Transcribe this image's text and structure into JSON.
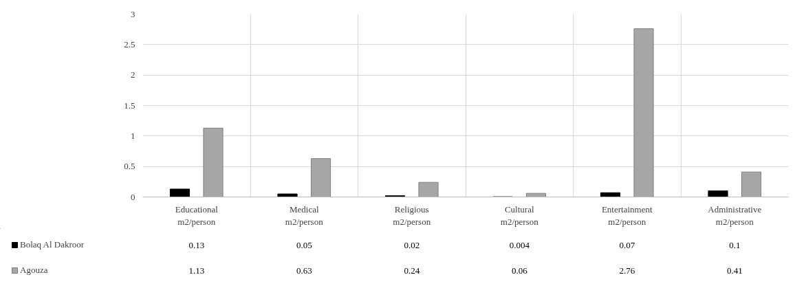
{
  "chart_data": {
    "type": "bar",
    "categories": [
      "Educational m2/person",
      "Medical m2/person",
      "Religious m2/person",
      "Cultural m2/person",
      "Entertainment m2/person",
      "Administrative m2/person"
    ],
    "series": [
      {
        "name": "Bolaq Al Dakroor",
        "color": "#000000",
        "values": [
          0.13,
          0.05,
          0.02,
          0.004,
          0.07,
          0.1
        ]
      },
      {
        "name": "Agouza",
        "color": "#a6a6a6",
        "values": [
          1.13,
          0.63,
          0.24,
          0.06,
          2.76,
          0.41
        ]
      }
    ],
    "ylim": [
      0,
      3
    ],
    "yticks": [
      0,
      0.5,
      1,
      1.5,
      2,
      2.5,
      3
    ],
    "grid": true,
    "data_labels": true,
    "legend": "bottom left"
  }
}
